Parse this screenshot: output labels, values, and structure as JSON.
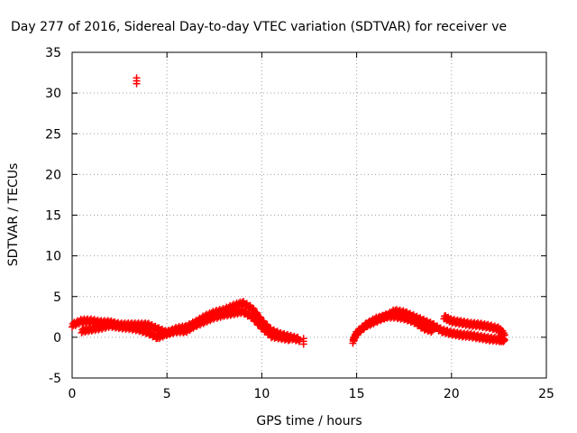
{
  "chart_data": {
    "type": "scatter",
    "title": "Day 277 of 2016, Sidereal Day-to-day VTEC variation (SDTVAR) for receiver ve",
    "xlabel": "GPS time / hours",
    "ylabel": "SDTVAR / TECUs",
    "xlim": [
      0,
      25
    ],
    "ylim": [
      -5,
      35
    ],
    "xticks": [
      0,
      5,
      10,
      15,
      20,
      25
    ],
    "yticks": [
      -5,
      0,
      5,
      10,
      15,
      20,
      25,
      30,
      35
    ],
    "grid": true,
    "marker_color": "#ff0000",
    "series": [
      {
        "name": "SDTVAR",
        "segments": [
          {
            "x": [
              0.0,
              0.5,
              1.0,
              1.5,
              2.0,
              2.5,
              3.0,
              3.5,
              4.0,
              4.5,
              5.0,
              5.5,
              6.0,
              6.5,
              7.0,
              7.5,
              8.0,
              8.5,
              9.0,
              9.5,
              10.0,
              10.5,
              11.0,
              11.5,
              12.0
            ],
            "y": [
              1.5,
              2.0,
              2.0,
              1.8,
              1.8,
              1.5,
              1.5,
              1.5,
              1.5,
              1.0,
              0.5,
              1.0,
              1.2,
              1.8,
              2.5,
              3.0,
              3.3,
              3.8,
              4.2,
              3.5,
              2.0,
              0.8,
              0.3,
              0.0,
              -0.3
            ]
          },
          {
            "x": [
              0.5,
              1.0,
              1.5,
              2.0,
              2.5,
              3.0,
              3.5,
              4.0,
              4.5,
              5.0,
              5.5,
              6.0,
              6.5,
              7.0,
              7.5,
              8.0,
              8.5,
              9.0,
              9.5,
              10.0,
              10.5,
              11.0,
              11.5
            ],
            "y": [
              0.8,
              1.0,
              1.2,
              1.5,
              1.3,
              1.2,
              1.0,
              0.6,
              0.0,
              0.5,
              0.8,
              0.8,
              1.5,
              2.0,
              2.5,
              2.8,
              3.0,
              3.2,
              2.5,
              1.2,
              0.2,
              0.0,
              -0.2
            ]
          },
          {
            "x": [
              12.2
            ],
            "y": [
              -0.5
            ]
          },
          {
            "x": [
              3.4
            ],
            "y": [
              31.5
            ]
          },
          {
            "x": [
              14.8,
              15.0,
              15.5,
              16.0,
              16.5,
              17.0,
              17.5,
              18.0,
              18.5,
              19.0,
              19.5,
              20.0,
              20.5,
              21.0,
              21.5,
              22.0,
              22.5,
              22.8
            ],
            "y": [
              -0.5,
              0.5,
              1.5,
              2.2,
              2.5,
              3.2,
              3.0,
              2.5,
              2.0,
              1.5,
              0.8,
              0.5,
              0.3,
              0.2,
              0.0,
              -0.2,
              -0.3,
              -0.3
            ]
          },
          {
            "x": [
              15.0,
              15.5,
              16.0,
              16.5,
              17.0,
              17.5,
              18.0,
              18.5,
              19.0
            ],
            "y": [
              0.5,
              1.5,
              2.0,
              2.6,
              2.6,
              2.4,
              2.0,
              1.2,
              0.8
            ]
          },
          {
            "x": [
              19.6,
              20.0,
              20.5,
              21.0,
              21.5,
              22.0,
              22.5,
              22.8
            ],
            "y": [
              2.5,
              2.0,
              1.8,
              1.6,
              1.5,
              1.3,
              1.0,
              0.3
            ]
          }
        ]
      }
    ]
  }
}
